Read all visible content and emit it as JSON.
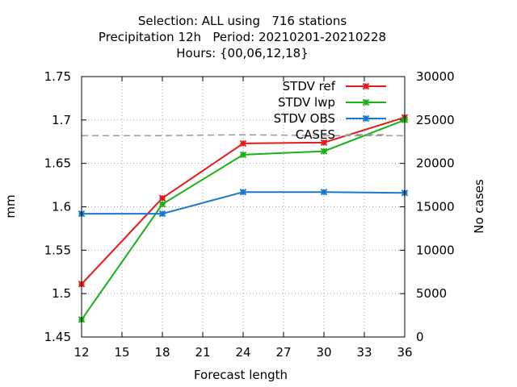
{
  "title_lines": [
    "Selection: ALL using   716 stations",
    "Precipitation 12h   Period: 20210201-20210228",
    "Hours: {00,06,12,18}"
  ],
  "chart_data": {
    "type": "line",
    "title": "Selection: ALL using   716 stations",
    "subtitle": "Precipitation 12h   Period: 20210201-20210228   Hours: {00,06,12,18}",
    "xlabel": "Forecast length",
    "ylabel": "mm",
    "y2label": "No cases",
    "x": [
      12,
      18,
      24,
      30,
      36
    ],
    "xlim": [
      12,
      36
    ],
    "xticks": [
      "12",
      "15",
      "18",
      "21",
      "24",
      "27",
      "30",
      "33",
      "36"
    ],
    "ylim": [
      1.45,
      1.75
    ],
    "yticks": [
      "1.45",
      "1.5",
      "1.55",
      "1.6",
      "1.65",
      "1.7",
      "1.75"
    ],
    "y2lim": [
      0,
      30000
    ],
    "y2ticks": [
      "0",
      "5000",
      "10000",
      "15000",
      "20000",
      "25000",
      "30000"
    ],
    "grid": true,
    "legend_position": "top-right",
    "series": [
      {
        "name": "STDV ref",
        "color": "#e41a1c",
        "axis": "y",
        "marker": "x",
        "values": [
          1.511,
          1.61,
          1.673,
          1.674,
          1.703
        ]
      },
      {
        "name": "STDV lwp",
        "color": "#17b317",
        "axis": "y",
        "marker": "x",
        "values": [
          1.47,
          1.603,
          1.66,
          1.664,
          1.7
        ]
      },
      {
        "name": "STDV OBS",
        "color": "#1a78d0",
        "axis": "y",
        "marker": "x",
        "values": [
          1.592,
          1.592,
          1.617,
          1.617,
          1.616
        ]
      },
      {
        "name": "CASES",
        "color": "#999999",
        "axis": "y2",
        "dashed": true,
        "values": [
          23200,
          23200,
          23300,
          23200,
          23200
        ]
      }
    ]
  }
}
